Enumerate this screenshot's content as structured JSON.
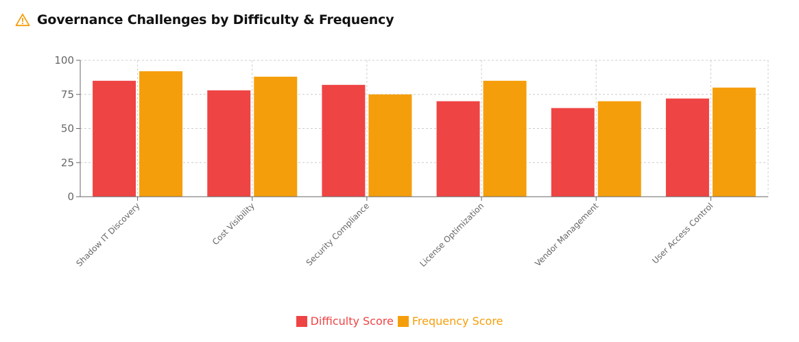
{
  "header": {
    "title": "Governance Challenges by Difficulty & Frequency",
    "icon": "warning-triangle-icon",
    "icon_color": "#f59e0b"
  },
  "chart_data": {
    "type": "bar",
    "categories": [
      "Shadow IT Discovery",
      "Cost Visibility",
      "Security Compliance",
      "License Optimization",
      "Vendor Management",
      "User Access Control"
    ],
    "series": [
      {
        "name": "Difficulty Score",
        "color": "#ef4444",
        "values": [
          85,
          78,
          82,
          70,
          65,
          72
        ]
      },
      {
        "name": "Frequency Score",
        "color": "#f59e0b",
        "values": [
          92,
          88,
          75,
          85,
          70,
          80
        ]
      }
    ],
    "ylim": [
      0,
      100
    ],
    "yticks": [
      0,
      25,
      50,
      75,
      100
    ],
    "grid": true,
    "legend_position": "bottom-center"
  }
}
